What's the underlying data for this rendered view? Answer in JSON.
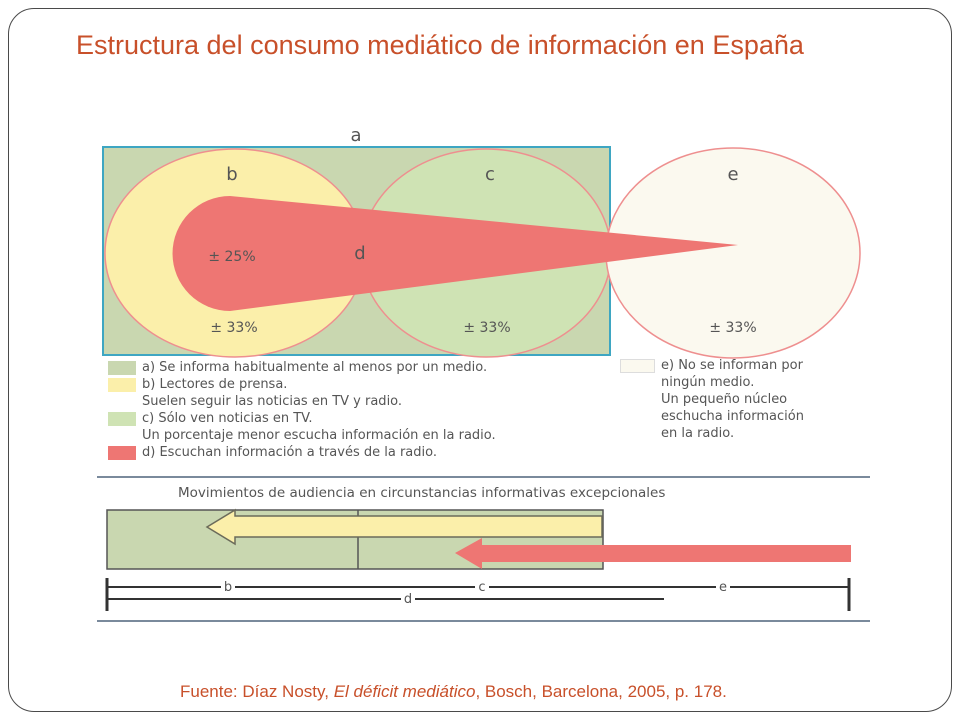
{
  "title": "Estructura del consumo mediático de información en España",
  "diagram": {
    "sets": {
      "a": "a",
      "b": "b",
      "c": "c",
      "d": "d",
      "e": "e"
    },
    "percentages": {
      "b_upper": "± 25%",
      "b_lower": "± 33%",
      "c": "± 33%",
      "e": "± 33%"
    },
    "movement_title": "Movimientos de audiencia en circunstancias informativas excepcionales",
    "scale_labels": {
      "b": "b",
      "c": "c",
      "e": "e",
      "d": "d"
    }
  },
  "legend": {
    "a": "a) Se informa habitualmente al menos por un medio.",
    "b": [
      "b) Lectores de prensa.",
      "Suelen seguir las noticias en TV y radio."
    ],
    "c": [
      "c) Sólo ven noticias en TV.",
      "Un porcentaje menor escucha información en la radio."
    ],
    "d": "d) Escuchan información a través de la radio.",
    "e": [
      "e) No se informan por",
      "ningún medio.",
      "Un pequeño núcleo",
      "eschucha información",
      "en la radio."
    ]
  },
  "source": {
    "prefix": "Fuente: Díaz Nosty, ",
    "italic": "El déficit mediático",
    "suffix": ", Bosch, Barcelona, 2005, p. 178."
  },
  "colors": {
    "title": "#c8502a",
    "a_fill": "#c9d7b0",
    "a_border": "#3ea6c2",
    "b_fill": "#fbefaa",
    "c_fill": "#cfe3b4",
    "d_fill": "#ee7673",
    "e_fill": "#fbf9ef",
    "circle_stroke": "#ee8f8f"
  }
}
